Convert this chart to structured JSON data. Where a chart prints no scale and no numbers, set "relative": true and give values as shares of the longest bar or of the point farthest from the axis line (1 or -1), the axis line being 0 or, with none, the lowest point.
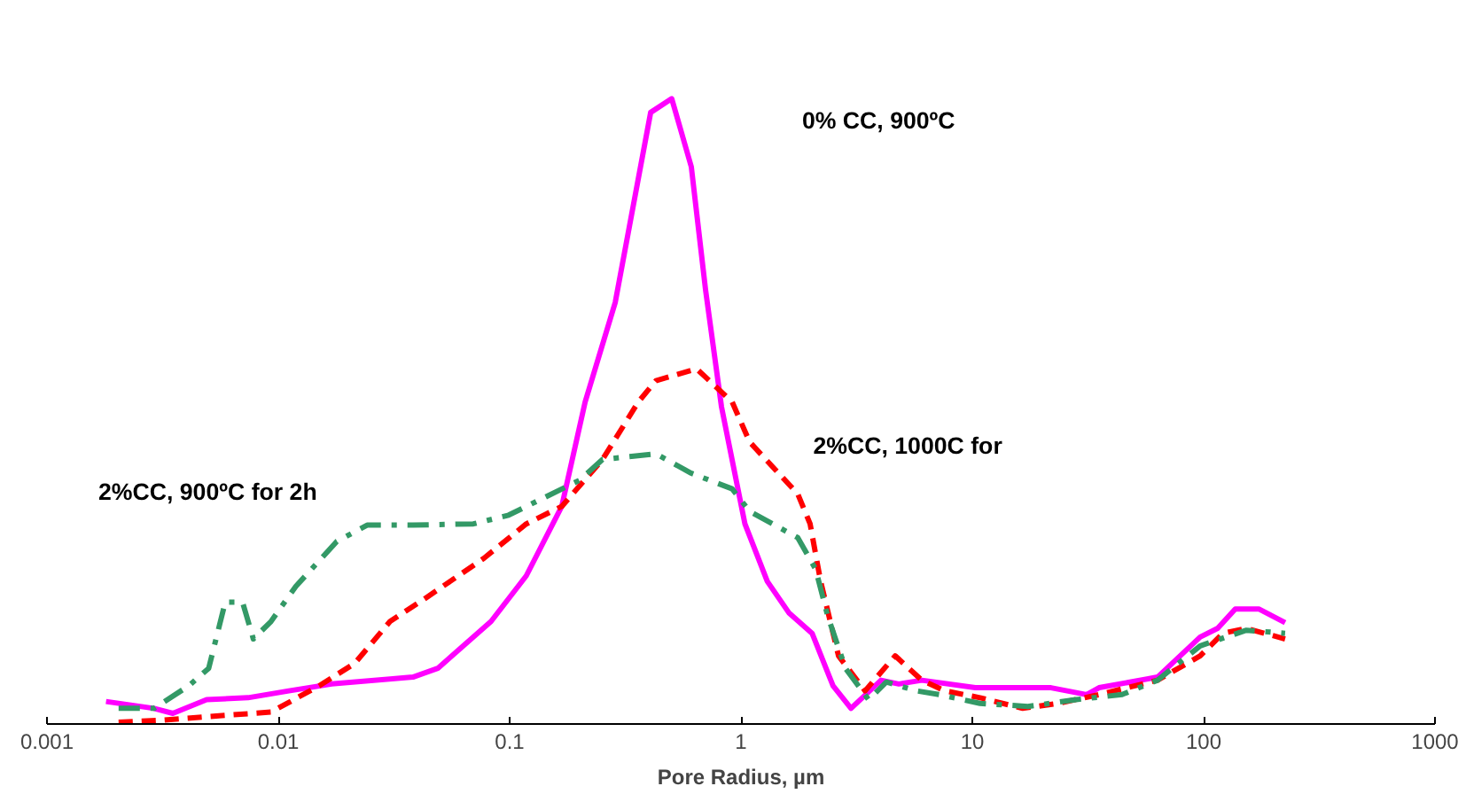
{
  "chart_data": {
    "type": "line",
    "xlabel": "Pore Radius, µm",
    "log": "x",
    "relative": true,
    "grid": false,
    "marker": "none",
    "xlim": [
      0.001,
      1000
    ],
    "xticks": [
      0.001,
      0.01,
      0.1,
      1,
      10,
      100,
      1000
    ],
    "series": [
      {
        "color": "#ff00ff",
        "line_style": "solid",
        "x": [
          0.0018,
          0.0029,
          0.0035,
          0.0049,
          0.0074,
          0.0111,
          0.017,
          0.0382,
          0.0489,
          0.0831,
          0.118,
          0.168,
          0.212,
          0.286,
          0.407,
          0.502,
          0.61,
          0.703,
          0.824,
          1.04,
          1.3,
          1.61,
          2.03,
          2.5,
          2.99,
          4.03,
          4.81,
          6.05,
          10.3,
          14.6,
          21.9,
          31.2,
          35.3,
          63.2,
          96.6,
          115,
          137,
          173,
          225
        ],
        "values": [
          0.036,
          0.025,
          0.017,
          0.039,
          0.042,
          0.053,
          0.064,
          0.075,
          0.089,
          0.164,
          0.237,
          0.348,
          0.515,
          0.674,
          0.978,
          1,
          0.891,
          0.694,
          0.507,
          0.32,
          0.228,
          0.178,
          0.145,
          0.061,
          0.025,
          0.07,
          0.064,
          0.07,
          0.058,
          0.058,
          0.058,
          0.047,
          0.058,
          0.075,
          0.139,
          0.153,
          0.184,
          0.184,
          0.162
        ]
      },
      {
        "color": "#ff0000",
        "line_style": "dashed",
        "x": [
          0.00204,
          0.0031,
          0.0059,
          0.0093,
          0.015,
          0.0214,
          0.0304,
          0.0432,
          0.0774,
          0.118,
          0.168,
          0.252,
          0.36,
          0.429,
          0.643,
          0.916,
          1.09,
          1.76,
          1.99,
          2.21,
          2.64,
          3.44,
          4.64,
          6.05,
          7.61,
          10.8,
          16.5,
          23.5,
          35.3,
          63.2,
          96.6,
          121,
          153,
          225
        ],
        "values": [
          0.003,
          0.006,
          0.014,
          0.019,
          0.061,
          0.097,
          0.164,
          0.201,
          0.265,
          0.32,
          0.348,
          0.423,
          0.515,
          0.549,
          0.568,
          0.515,
          0.451,
          0.368,
          0.32,
          0.228,
          0.109,
          0.053,
          0.109,
          0.07,
          0.053,
          0.042,
          0.025,
          0.033,
          0.047,
          0.07,
          0.109,
          0.145,
          0.153,
          0.136
        ]
      },
      {
        "color": "#339966",
        "line_style": "dashdot",
        "x": [
          0.00204,
          0.0029,
          0.0041,
          0.005,
          0.0059,
          0.007,
          0.0078,
          0.0093,
          0.0119,
          0.0179,
          0.0242,
          0.0382,
          0.0697,
          0.099,
          0.141,
          0.201,
          0.252,
          0.429,
          0.61,
          0.916,
          1.09,
          1.76,
          2.1,
          2.37,
          2.83,
          3.56,
          4.25,
          5.74,
          7.21,
          10.8,
          17.4,
          28.1,
          44.4,
          63.2,
          96.6,
          153,
          225
        ],
        "values": [
          0.025,
          0.025,
          0.061,
          0.089,
          0.195,
          0.195,
          0.136,
          0.164,
          0.22,
          0.292,
          0.318,
          0.318,
          0.32,
          0.334,
          0.362,
          0.39,
          0.423,
          0.432,
          0.401,
          0.376,
          0.34,
          0.298,
          0.248,
          0.173,
          0.089,
          0.039,
          0.067,
          0.053,
          0.047,
          0.033,
          0.028,
          0.039,
          0.047,
          0.07,
          0.125,
          0.15,
          0.145
        ]
      }
    ],
    "annotations": [
      "0% CC, 900ºC",
      "2%CC,  1000C for",
      "2%CC, 900ºC for 2h"
    ]
  }
}
